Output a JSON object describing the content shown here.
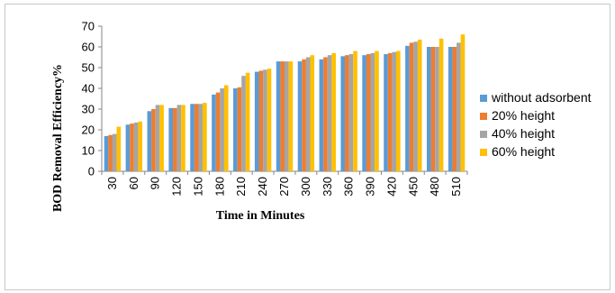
{
  "chart_data": {
    "type": "bar",
    "title": "",
    "xlabel": "Time in Minutes",
    "ylabel": "BOD  Removal Efficiency%",
    "ylim": [
      0,
      70
    ],
    "yticks": [
      0,
      10,
      20,
      30,
      40,
      50,
      60,
      70
    ],
    "grid": false,
    "legend_position": "right",
    "categories": [
      "30",
      "60",
      "90",
      "120",
      "150",
      "180",
      "210",
      "240",
      "270",
      "300",
      "330",
      "360",
      "390",
      "420",
      "450",
      "480",
      "510"
    ],
    "series": [
      {
        "name": "without adsorbent",
        "color": "#5B9BD5",
        "values": [
          17,
          22.5,
          29,
          30.5,
          32.5,
          37,
          40,
          48,
          53,
          53,
          54,
          55.5,
          56,
          56.5,
          60.5,
          60,
          60
        ]
      },
      {
        "name": "20% height",
        "color": "#ED7D31",
        "values": [
          17.5,
          23,
          30,
          30.5,
          32.5,
          38,
          40.5,
          48.5,
          53,
          54,
          55,
          56,
          56.5,
          57,
          62,
          60,
          60
        ]
      },
      {
        "name": "40% height",
        "color": "#A5A5A5",
        "values": [
          18,
          23.5,
          32,
          32,
          32.5,
          40,
          46,
          49,
          53,
          55,
          56,
          56.5,
          57,
          57.5,
          62.5,
          60,
          62
        ]
      },
      {
        "name": "60% height",
        "color": "#FFC000",
        "values": [
          21.5,
          24,
          32,
          32,
          33,
          41.5,
          47.5,
          49.5,
          53,
          56,
          57,
          58,
          58,
          58,
          63.5,
          64,
          66
        ]
      }
    ]
  }
}
